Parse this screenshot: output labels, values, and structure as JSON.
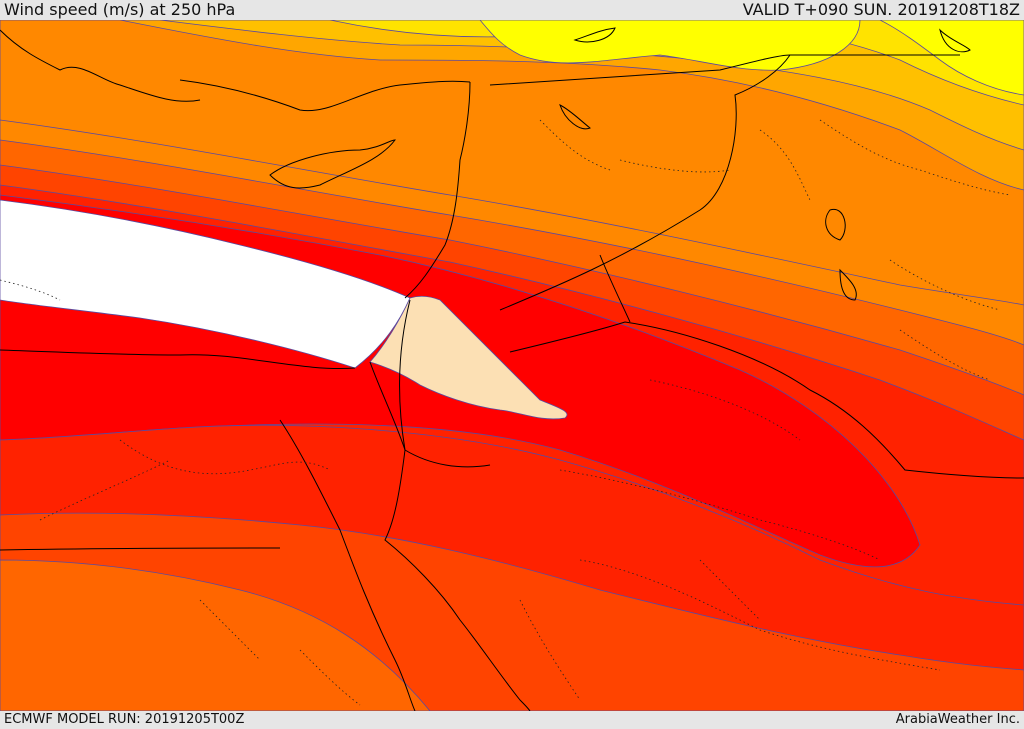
{
  "header": {
    "title": "Wind speed (m/s) at 250 hPa",
    "valid": "VALID T+090 SUN. 20191208T18Z"
  },
  "footer": {
    "model_run": "ECMWF MODEL RUN: 20191205T00Z",
    "credit": "ArabiaWeather Inc."
  },
  "map": {
    "variable": "wind-speed",
    "level_hpa": 250,
    "colors": {
      "yellow": "#ffff00",
      "light_yellow": "#ffe300",
      "gold": "#ffc000",
      "amber": "#ffa600",
      "orange": "#ff8800",
      "dark_orange": "#ff6600",
      "red_orange": "#ff4400",
      "orange_red": "#ff2200",
      "red": "#ff0000",
      "peak_fill": "#ffffff",
      "calm_fill": "#fce0b4",
      "contour_line": "#5a4aa0",
      "coast_line": "#000000"
    }
  }
}
